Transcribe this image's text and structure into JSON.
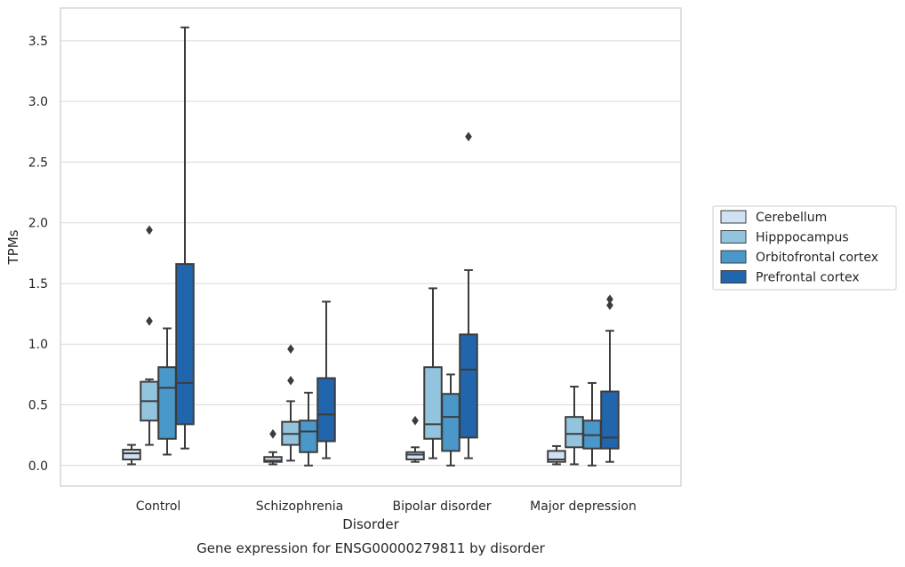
{
  "chart_data": {
    "type": "box",
    "title": "",
    "caption": "Gene expression for ENSG00000279811 by disorder",
    "xlabel": "Disorder",
    "ylabel": "TPMs",
    "ylim": [
      -0.17,
      3.77
    ],
    "yticks": [
      0.0,
      0.5,
      1.0,
      1.5,
      2.0,
      2.5,
      3.0,
      3.5
    ],
    "ytick_labels": [
      "0.0",
      "0.5",
      "1.0",
      "1.5",
      "2.0",
      "2.5",
      "3.0",
      "3.5"
    ],
    "grid": "horizontal",
    "legend_position": "right",
    "categories": [
      "Control",
      "Schizophrenia",
      "Bipolar disorder",
      "Major depression"
    ],
    "series": [
      {
        "name": "Cerebellum",
        "color": "#cfe1f2",
        "boxes": [
          {
            "whisker_low": 0.01,
            "q1": 0.05,
            "median": 0.1,
            "q3": 0.13,
            "whisker_high": 0.17,
            "outliers": []
          },
          {
            "whisker_low": 0.01,
            "q1": 0.03,
            "median": 0.04,
            "q3": 0.07,
            "whisker_high": 0.11,
            "outliers": []
          },
          {
            "whisker_low": 0.03,
            "q1": 0.05,
            "median": 0.09,
            "q3": 0.11,
            "whisker_high": 0.15,
            "outliers": []
          },
          {
            "whisker_low": 0.01,
            "q1": 0.03,
            "median": 0.05,
            "q3": 0.12,
            "whisker_high": 0.16,
            "outliers": []
          }
        ]
      },
      {
        "name": "Hipppocampus",
        "color": "#93c4de",
        "boxes": [
          {
            "whisker_low": 0.17,
            "q1": 0.37,
            "median": 0.53,
            "q3": 0.69,
            "whisker_high": 0.71,
            "outliers": [
              1.19,
              1.94
            ]
          },
          {
            "whisker_low": 0.04,
            "q1": 0.17,
            "median": 0.26,
            "q3": 0.36,
            "whisker_high": 0.53,
            "outliers": [
              0.7,
              0.96
            ]
          },
          {
            "whisker_low": 0.06,
            "q1": 0.22,
            "median": 0.34,
            "q3": 0.81,
            "whisker_high": 1.46,
            "outliers": []
          },
          {
            "whisker_low": 0.01,
            "q1": 0.15,
            "median": 0.26,
            "q3": 0.4,
            "whisker_high": 0.65,
            "outliers": []
          }
        ]
      },
      {
        "name": "Orbitofrontal cortex",
        "color": "#4a98c9",
        "boxes": [
          {
            "whisker_low": 0.09,
            "q1": 0.22,
            "median": 0.64,
            "q3": 0.81,
            "whisker_high": 1.13,
            "outliers": []
          },
          {
            "whisker_low": 0.0,
            "q1": 0.11,
            "median": 0.28,
            "q3": 0.37,
            "whisker_high": 0.6,
            "outliers": []
          },
          {
            "whisker_low": 0.0,
            "q1": 0.12,
            "median": 0.4,
            "q3": 0.59,
            "whisker_high": 0.75,
            "outliers": []
          },
          {
            "whisker_low": 0.0,
            "q1": 0.14,
            "median": 0.25,
            "q3": 0.37,
            "whisker_high": 0.68,
            "outliers": []
          }
        ]
      },
      {
        "name": "Prefrontal cortex",
        "color": "#2166ac",
        "boxes": [
          {
            "whisker_low": 0.14,
            "q1": 0.34,
            "median": 0.68,
            "q3": 1.66,
            "whisker_high": 3.61,
            "outliers": []
          },
          {
            "whisker_low": 0.06,
            "q1": 0.2,
            "median": 0.42,
            "q3": 0.72,
            "whisker_high": 1.35,
            "outliers": []
          },
          {
            "whisker_low": 0.06,
            "q1": 0.23,
            "median": 0.79,
            "q3": 1.08,
            "whisker_high": 1.61,
            "outliers": []
          },
          {
            "whisker_low": 0.03,
            "q1": 0.14,
            "median": 0.23,
            "q3": 0.61,
            "whisker_high": 1.11,
            "outliers": [
              1.32,
              1.37
            ]
          }
        ]
      }
    ],
    "extra_outliers": [
      {
        "category_index": 0,
        "series_index": 0,
        "values": []
      },
      {
        "category_index": 1,
        "series_index": 0,
        "values": [
          0.26
        ]
      },
      {
        "category_index": 2,
        "series_index": 0,
        "values": [
          0.37
        ]
      },
      {
        "category_index": 2,
        "series_index": 3,
        "values": [
          2.71
        ]
      }
    ]
  }
}
